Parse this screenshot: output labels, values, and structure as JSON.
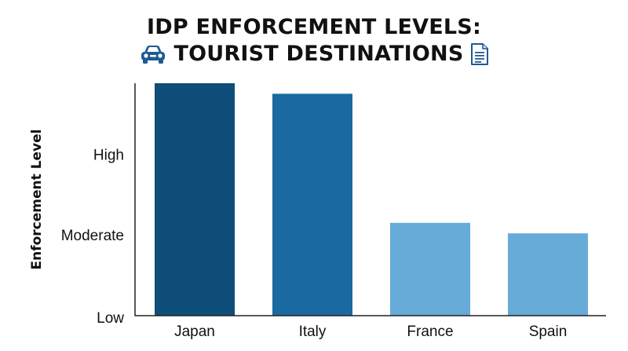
{
  "title": {
    "line1": "IDP ENFORCEMENT LEVELS:",
    "line2": "TOURIST DESTINATIONS",
    "icon_left": "car-icon",
    "icon_right": "document-icon"
  },
  "colors": {
    "icon_blue": "#1f5b93",
    "axis": "#222222"
  },
  "chart_data": {
    "type": "bar",
    "title": "IDP ENFORCEMENT LEVELS: TOURIST DESTINATIONS",
    "xlabel": "",
    "ylabel": "Enforcement Level",
    "categories": [
      "Japan",
      "Italy",
      "France",
      "Spain"
    ],
    "values": [
      2.88,
      2.75,
      1.15,
      1.02
    ],
    "colors": [
      "#0f4e78",
      "#1a6aa1",
      "#67abd8",
      "#67abd8"
    ],
    "y_ticks": [
      {
        "value": 0,
        "label": "Low"
      },
      {
        "value": 1,
        "label": "Moderate"
      },
      {
        "value": 2,
        "label": "High"
      }
    ],
    "ylim": [
      0,
      2.88
    ],
    "grid": false,
    "legend": "none"
  }
}
